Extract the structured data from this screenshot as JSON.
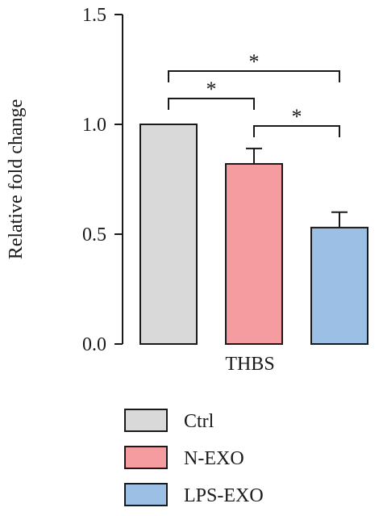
{
  "chart_data": {
    "type": "bar",
    "ylabel": "Relative fold change",
    "xlabel": "THBS",
    "ylim": [
      0,
      1.5
    ],
    "yticks": [
      "0.0",
      "0.5",
      "1.0",
      "1.5"
    ],
    "series": [
      {
        "name": "Ctrl",
        "value": 1.0,
        "error": 0.0,
        "color": "#d9d9d9"
      },
      {
        "name": "N-EXO",
        "value": 0.82,
        "error": 0.07,
        "color": "#f49ca0"
      },
      {
        "name": "LPS-EXO",
        "value": 0.53,
        "error": 0.07,
        "color": "#9cbfe6"
      }
    ],
    "significance": [
      {
        "from": "Ctrl",
        "to": "N-EXO",
        "label": "*"
      },
      {
        "from": "N-EXO",
        "to": "LPS-EXO",
        "label": "*"
      },
      {
        "from": "Ctrl",
        "to": "LPS-EXO",
        "label": "*"
      }
    ],
    "legend_position": "bottom"
  }
}
